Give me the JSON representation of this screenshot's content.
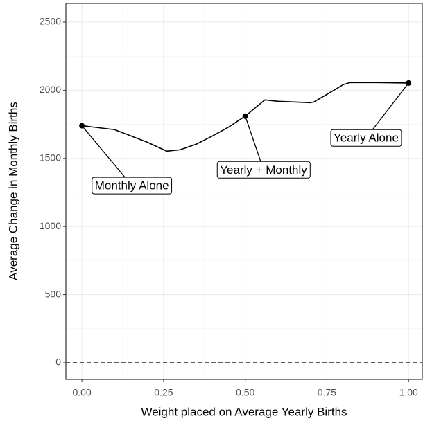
{
  "chart_data": {
    "type": "line",
    "x_label": "Weight placed on Average Yearly Births",
    "y_label": "Average Change in Monthly Births",
    "series": [
      {
        "color": "#000000",
        "x": [
          0,
          0.1,
          0.2,
          0.26,
          0.3,
          0.35,
          0.4,
          0.45,
          0.5,
          0.56,
          0.6,
          0.7,
          0.71,
          0.75,
          0.8,
          0.82,
          0.9,
          1.0
        ],
        "values": [
          1740,
          1711,
          1619,
          1553,
          1563,
          1604,
          1665,
          1731,
          1810,
          1929,
          1919,
          1909,
          1914,
          1970,
          2041,
          2056,
          2056,
          2053
        ]
      }
    ],
    "points": {
      "x": [
        0,
        0.5,
        1.0
      ],
      "values": [
        1740,
        1810,
        2053
      ]
    },
    "annotations": [
      {
        "label": "Monthly Alone",
        "x": 0.153,
        "y": 1300
      },
      {
        "label": "Yearly + Monthly",
        "x": 0.556,
        "y": 1416
      },
      {
        "label": "Yearly Alone",
        "x": 0.87,
        "y": 1650
      }
    ],
    "reference_line": 0,
    "xlim": [
      -0.049,
      1.042
    ],
    "ylim": [
      -122,
      2637
    ],
    "xticks": [
      {
        "value": 0,
        "label": "0.00"
      },
      {
        "value": 0.25,
        "label": "0.25"
      },
      {
        "value": 0.5,
        "label": "0.50"
      },
      {
        "value": 0.75,
        "label": "0.75"
      },
      {
        "value": 1,
        "label": "1.00"
      }
    ],
    "yticks": [
      0,
      500,
      1000,
      1500,
      2000,
      2500
    ],
    "grid": true
  }
}
